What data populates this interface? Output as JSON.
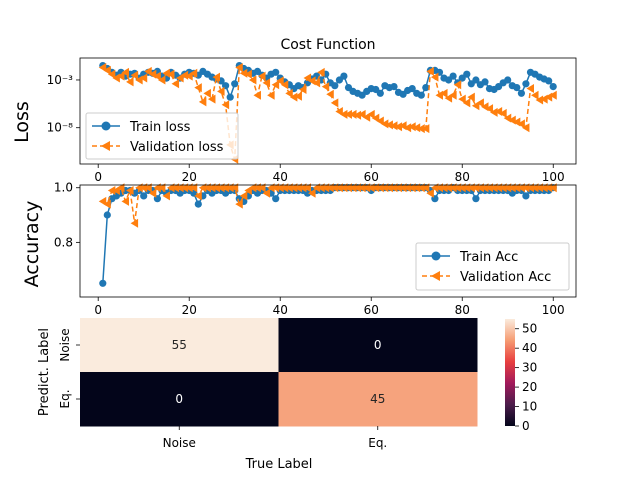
{
  "chart_data": [
    {
      "type": "line",
      "title": "Cost Function",
      "xlabel": "",
      "ylabel": "Loss",
      "xlim": [
        -4,
        105
      ],
      "ylim_log10": [
        -11.8,
        -0.7
      ],
      "yscale": "log",
      "xticks": [
        0,
        20,
        40,
        60,
        80,
        100
      ],
      "yticks": [
        {
          "log10": -3,
          "label": "10⁻³"
        },
        {
          "log10": -8,
          "label": "10⁻⁸"
        }
      ],
      "legend_position": "bottom-left",
      "series": [
        {
          "name": "Train loss",
          "color": "#1f77b4",
          "marker": "circle",
          "x": [
            1,
            2,
            3,
            4,
            5,
            6,
            7,
            8,
            9,
            10,
            11,
            12,
            13,
            14,
            15,
            16,
            17,
            18,
            19,
            20,
            21,
            22,
            23,
            24,
            25,
            26,
            27,
            28,
            29,
            30,
            31,
            32,
            33,
            34,
            35,
            36,
            37,
            38,
            39,
            40,
            41,
            42,
            43,
            44,
            45,
            46,
            47,
            48,
            49,
            50,
            51,
            52,
            53,
            54,
            55,
            56,
            57,
            58,
            59,
            60,
            61,
            62,
            63,
            64,
            65,
            66,
            67,
            68,
            69,
            70,
            71,
            72,
            73,
            74,
            75,
            76,
            77,
            78,
            79,
            80,
            81,
            82,
            83,
            84,
            85,
            86,
            87,
            88,
            89,
            90,
            91,
            92,
            93,
            94,
            95,
            96,
            97,
            98,
            99,
            100
          ],
          "log10": [
            -1.5,
            -1.8,
            -2.2,
            -2.5,
            -2.2,
            -2.6,
            -2.4,
            -2.3,
            -2.8,
            -2.4,
            -2.2,
            -2.3,
            -2.1,
            -2.6,
            -2.8,
            -2.2,
            -2.5,
            -2.8,
            -2.4,
            -2.2,
            -2.3,
            -2.5,
            -2.1,
            -2.4,
            -2.7,
            -2.9,
            -3.1,
            -3.6,
            -4.8,
            -3.4,
            -1.5,
            -1.8,
            -2.0,
            -2.3,
            -2.1,
            -2.5,
            -2.8,
            -2.4,
            -2.2,
            -2.8,
            -3.2,
            -3.5,
            -3.9,
            -3.6,
            -3.8,
            -3.3,
            -2.9,
            -2.6,
            -3.0,
            -2.4,
            -3.3,
            -3.6,
            -3.0,
            -2.6,
            -3.8,
            -4.2,
            -4.4,
            -4.6,
            -4.2,
            -3.9,
            -4.0,
            -4.4,
            -3.6,
            -3.8,
            -3.7,
            -4.3,
            -4.5,
            -4.1,
            -3.9,
            -4.4,
            -4.6,
            -3.8,
            -2.0,
            -2.0,
            -2.2,
            -2.8,
            -3.0,
            -2.6,
            -3.3,
            -2.8,
            -2.4,
            -3.4,
            -3.0,
            -3.5,
            -3.2,
            -3.9,
            -4.0,
            -3.7,
            -3.3,
            -3.0,
            -3.6,
            -3.8,
            -4.4,
            -3.4,
            -2.2,
            -2.4,
            -2.7,
            -2.9,
            -3.1,
            -3.7
          ]
        },
        {
          "name": "Validation loss",
          "color": "#ff7f0e",
          "marker": "triangle-left",
          "linestyle": "dashed",
          "x": [
            1,
            2,
            3,
            4,
            5,
            6,
            7,
            8,
            9,
            10,
            11,
            12,
            13,
            14,
            15,
            16,
            17,
            18,
            19,
            20,
            21,
            22,
            23,
            24,
            25,
            26,
            27,
            28,
            29,
            30,
            31,
            32,
            33,
            34,
            35,
            36,
            37,
            38,
            39,
            40,
            41,
            42,
            43,
            44,
            45,
            46,
            47,
            48,
            49,
            50,
            51,
            52,
            53,
            54,
            55,
            56,
            57,
            58,
            59,
            60,
            61,
            62,
            63,
            64,
            65,
            66,
            67,
            68,
            69,
            70,
            71,
            72,
            73,
            74,
            75,
            76,
            77,
            78,
            79,
            80,
            81,
            82,
            83,
            84,
            85,
            86,
            87,
            88,
            89,
            90,
            91,
            92,
            93,
            94,
            95,
            96,
            97,
            98,
            99,
            100
          ],
          "log10": [
            -1.7,
            -2.0,
            -2.4,
            -2.8,
            -2.6,
            -2.2,
            -3.2,
            -2.5,
            -3.0,
            -2.8,
            -2.1,
            -2.4,
            -2.6,
            -3.0,
            -2.3,
            -2.4,
            -3.4,
            -2.8,
            -2.5,
            -2.6,
            -2.3,
            -3.8,
            -5.3,
            -4.4,
            -5.0,
            -2.7,
            -4.2,
            -5.6,
            -9.8,
            -11.3,
            -1.7,
            -2.3,
            -2.4,
            -3.0,
            -4.6,
            -2.6,
            -3.3,
            -4.6,
            -3.5,
            -3.1,
            -3.5,
            -4.4,
            -4.8,
            -4.7,
            -4.0,
            -2.8,
            -3.1,
            -3.3,
            -2.2,
            -3.7,
            -4.5,
            -5.4,
            -6.3,
            -6.6,
            -6.6,
            -6.6,
            -6.7,
            -6.6,
            -6.9,
            -6.6,
            -7.0,
            -7.3,
            -7.6,
            -7.7,
            -7.8,
            -7.9,
            -7.8,
            -8.0,
            -7.9,
            -8.0,
            -8.1,
            -8.1,
            -2.1,
            -2.7,
            -4.6,
            -4.4,
            -4.9,
            -4.6,
            -3.5,
            -5.0,
            -5.4,
            -4.8,
            -5.7,
            -5.4,
            -5.8,
            -6.0,
            -6.4,
            -6.3,
            -6.5,
            -7.0,
            -7.2,
            -7.4,
            -7.6,
            -8.0,
            -3.9,
            -4.6,
            -5.1,
            -5.0,
            -4.8,
            -4.6
          ]
        }
      ]
    },
    {
      "type": "line",
      "title": "",
      "xlabel": "",
      "ylabel": "Accuracy",
      "xlim": [
        -4,
        105
      ],
      "ylim": [
        0.6,
        1.01
      ],
      "xticks": [
        0,
        20,
        40,
        60,
        80,
        100
      ],
      "yticks": [
        0.8,
        1.0
      ],
      "legend_position": "bottom-right",
      "series": [
        {
          "name": "Train Acc",
          "color": "#1f77b4",
          "marker": "circle",
          "x": [
            1,
            2,
            3,
            4,
            5,
            6,
            7,
            8,
            9,
            10,
            11,
            12,
            13,
            14,
            15,
            16,
            17,
            18,
            19,
            20,
            21,
            22,
            23,
            24,
            25,
            26,
            27,
            28,
            29,
            30,
            31,
            32,
            33,
            34,
            35,
            36,
            37,
            38,
            39,
            40,
            41,
            42,
            43,
            44,
            45,
            46,
            47,
            48,
            49,
            50,
            51,
            52,
            53,
            54,
            55,
            56,
            57,
            58,
            59,
            60,
            61,
            62,
            63,
            64,
            65,
            66,
            67,
            68,
            69,
            70,
            71,
            72,
            73,
            74,
            75,
            76,
            77,
            78,
            79,
            80,
            81,
            82,
            83,
            84,
            85,
            86,
            87,
            88,
            89,
            90,
            91,
            92,
            93,
            94,
            95,
            96,
            97,
            98,
            99,
            100
          ],
          "y": [
            0.65,
            0.9,
            0.96,
            0.97,
            0.98,
            0.99,
            0.99,
            0.98,
            0.99,
            0.97,
            0.99,
            0.99,
            0.96,
            0.99,
            0.98,
            0.99,
            0.99,
            0.98,
            0.99,
            0.99,
            0.98,
            0.94,
            0.97,
            0.99,
            0.98,
            0.99,
            0.99,
            0.98,
            0.99,
            0.99,
            0.96,
            0.95,
            0.97,
            0.99,
            0.98,
            0.99,
            0.99,
            0.98,
            0.96,
            0.99,
            0.99,
            0.99,
            0.99,
            0.99,
            0.99,
            0.98,
            0.99,
            0.99,
            0.99,
            0.99,
            0.99,
            1.0,
            1.0,
            1.0,
            1.0,
            1.0,
            1.0,
            1.0,
            1.0,
            0.99,
            1.0,
            1.0,
            1.0,
            1.0,
            1.0,
            1.0,
            1.0,
            1.0,
            1.0,
            1.0,
            1.0,
            1.0,
            0.99,
            0.96,
            0.99,
            0.99,
            0.99,
            1.0,
            0.99,
            0.99,
            0.99,
            0.99,
            0.96,
            0.99,
            0.99,
            0.99,
            0.99,
            0.99,
            0.99,
            0.99,
            0.98,
            0.99,
            0.99,
            0.97,
            0.99,
            0.99,
            0.99,
            0.99,
            0.99,
            1.0
          ]
        },
        {
          "name": "Validation Acc",
          "color": "#ff7f0e",
          "marker": "triangle-left",
          "linestyle": "dashed",
          "x": [
            1,
            2,
            3,
            4,
            5,
            6,
            7,
            8,
            9,
            10,
            11,
            12,
            13,
            14,
            15,
            16,
            17,
            18,
            19,
            20,
            21,
            22,
            23,
            24,
            25,
            26,
            27,
            28,
            29,
            30,
            31,
            32,
            33,
            34,
            35,
            36,
            37,
            38,
            39,
            40,
            41,
            42,
            43,
            44,
            45,
            46,
            47,
            48,
            49,
            50,
            51,
            52,
            53,
            54,
            55,
            56,
            57,
            58,
            59,
            60,
            61,
            62,
            63,
            64,
            65,
            66,
            67,
            68,
            69,
            70,
            71,
            72,
            73,
            74,
            75,
            76,
            77,
            78,
            79,
            80,
            81,
            82,
            83,
            84,
            85,
            86,
            87,
            88,
            89,
            90,
            91,
            92,
            93,
            94,
            95,
            96,
            97,
            98,
            99,
            100
          ],
          "y": [
            0.95,
            0.94,
            0.99,
            0.99,
            1.0,
            0.95,
            0.99,
            0.87,
            1.0,
            1.0,
            1.0,
            0.98,
            1.0,
            1.0,
            0.97,
            1.0,
            1.0,
            1.0,
            1.0,
            1.0,
            1.0,
            0.97,
            1.0,
            1.0,
            1.0,
            1.0,
            1.0,
            1.0,
            1.0,
            1.0,
            0.94,
            0.97,
            0.99,
            1.0,
            1.0,
            1.0,
            0.98,
            1.0,
            1.0,
            1.0,
            1.0,
            1.0,
            1.0,
            1.0,
            1.0,
            1.0,
            0.98,
            1.0,
            1.0,
            1.0,
            1.0,
            1.0,
            1.0,
            1.0,
            1.0,
            1.0,
            1.0,
            1.0,
            1.0,
            1.0,
            1.0,
            1.0,
            1.0,
            1.0,
            1.0,
            1.0,
            1.0,
            1.0,
            1.0,
            1.0,
            1.0,
            1.0,
            0.98,
            1.0,
            1.0,
            1.0,
            1.0,
            1.0,
            1.0,
            1.0,
            1.0,
            1.0,
            1.0,
            1.0,
            1.0,
            1.0,
            1.0,
            1.0,
            1.0,
            1.0,
            1.0,
            1.0,
            1.0,
            1.0,
            1.0,
            1.0,
            1.0,
            1.0,
            1.0,
            1.0
          ]
        }
      ]
    },
    {
      "type": "heatmap",
      "title": "",
      "xlabel": "True Label",
      "ylabel": "Predict. Label",
      "x_categories": [
        "Noise",
        "Eq."
      ],
      "y_categories": [
        "Noise",
        "Eq."
      ],
      "values": [
        [
          55,
          0
        ],
        [
          0,
          45
        ]
      ],
      "colorbar_range": [
        0,
        55
      ],
      "colorbar_ticks": [
        0,
        10,
        20,
        30,
        40,
        50
      ],
      "colormap": "rocket",
      "colormap_stops": [
        "#03051a",
        "#4c1d4b",
        "#a11a5b",
        "#e83f3f",
        "#f69c73",
        "#faebdd"
      ]
    }
  ]
}
